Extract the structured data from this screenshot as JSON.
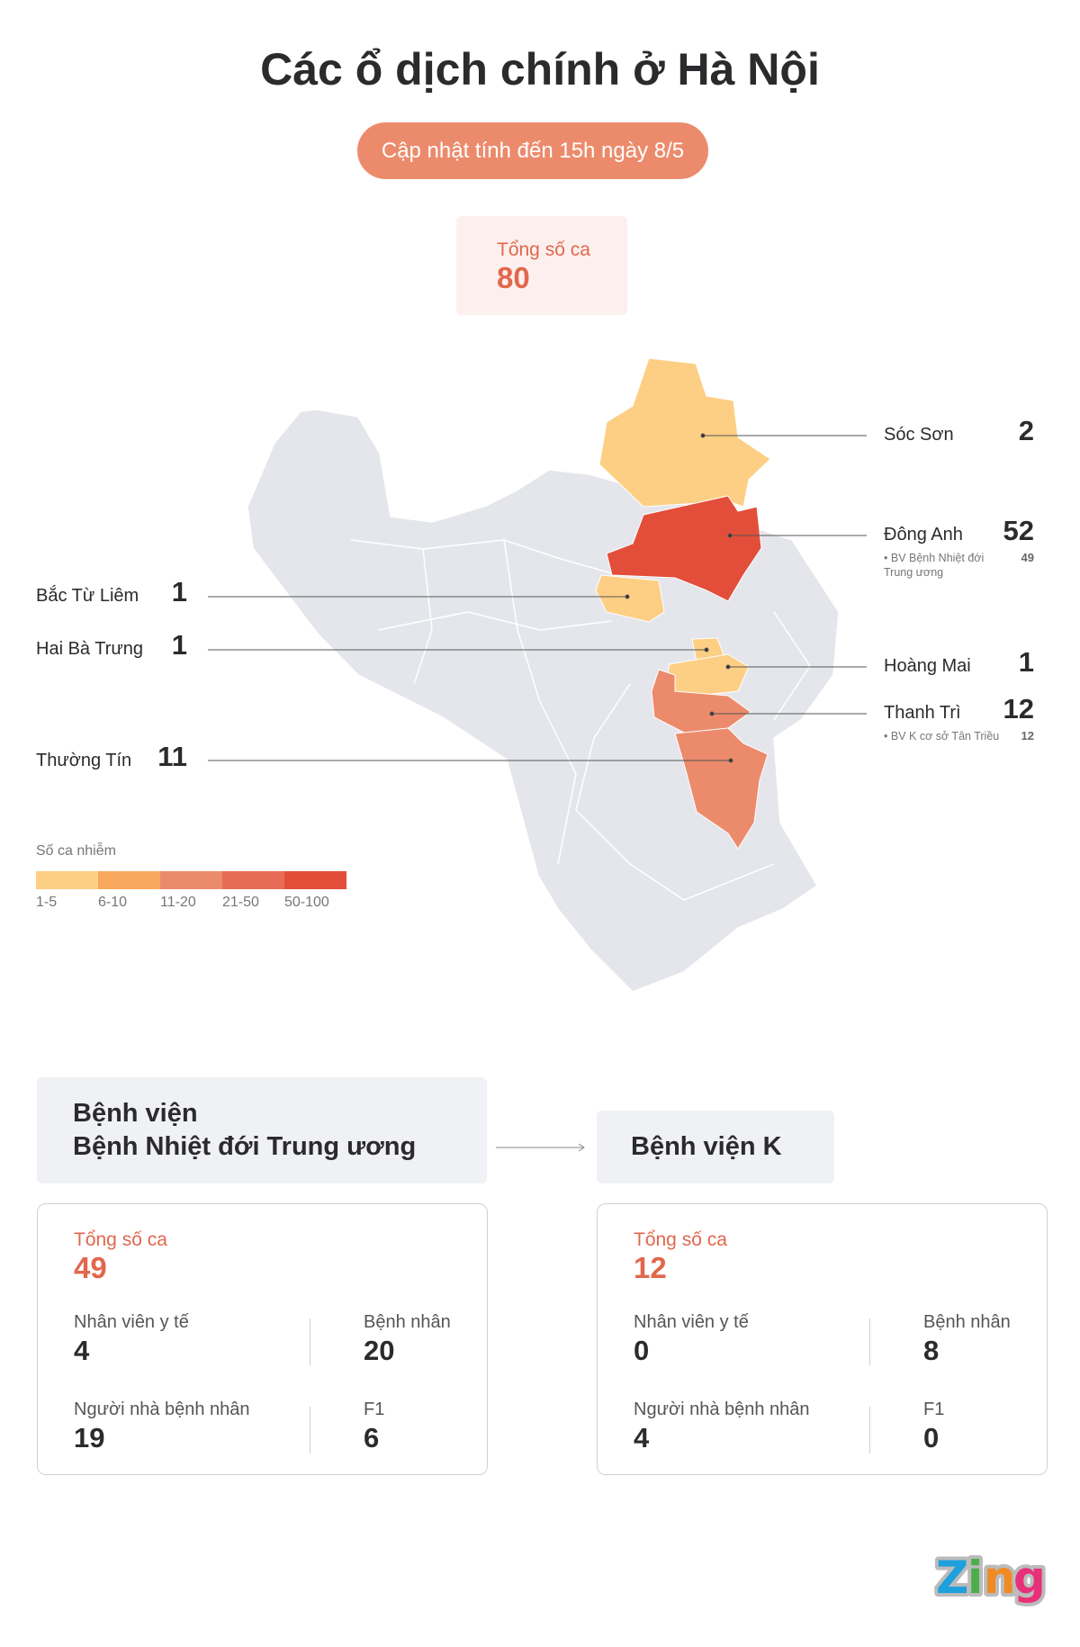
{
  "title": "Các ổ dịch chính ở Hà Nội",
  "update_badge": "Cập nhật tính đến 15h ngày 8/5",
  "total": {
    "label": "Tổng số ca",
    "value": "80"
  },
  "map": {
    "districts": [
      {
        "name": "Sóc Sơn",
        "cases": "2",
        "color": "#fdcf84"
      },
      {
        "name": "Đông Anh",
        "cases": "52",
        "color": "#e24e39",
        "note": "BV Bệnh Nhiệt đới Trung ương",
        "note_cases": "49"
      },
      {
        "name": "Bắc Từ Liêm",
        "cases": "1",
        "color": "#fdcf84"
      },
      {
        "name": "Hai Bà Trưng",
        "cases": "1",
        "color": "#fdcf84"
      },
      {
        "name": "Hoàng Mai",
        "cases": "1",
        "color": "#fdcf84"
      },
      {
        "name": "Thanh Trì",
        "cases": "12",
        "color": "#ec8b6c",
        "note": "BV K cơ sở Tân Triều",
        "note_cases": "12"
      },
      {
        "name": "Thường Tín",
        "cases": "11",
        "color": "#ec8b6c"
      }
    ],
    "base_color": "#e4e6ec"
  },
  "legend": {
    "title": "Số ca nhiễm",
    "items": [
      {
        "label": "1-5",
        "color": "#fdcf84"
      },
      {
        "label": "6-10",
        "color": "#f8a85c"
      },
      {
        "label": "11-20",
        "color": "#ec8b6c"
      },
      {
        "label": "21-50",
        "color": "#e76c55"
      },
      {
        "label": "50-100",
        "color": "#e24e39"
      }
    ]
  },
  "hospitals": [
    {
      "name_line1": "Bệnh viện",
      "name_line2": "Bệnh Nhiệt đới Trung ương",
      "total_label": "Tổng số ca",
      "total": "49",
      "stats": [
        {
          "label": "Nhân viên y tế",
          "value": "4"
        },
        {
          "label": "Bệnh nhân",
          "value": "20"
        },
        {
          "label": "Người nhà bệnh nhân",
          "value": "19"
        },
        {
          "label": "F1",
          "value": "6"
        }
      ]
    },
    {
      "name_line1": "Bệnh viện K",
      "total_label": "Tổng số ca",
      "total": "12",
      "stats": [
        {
          "label": "Nhân viên y tế",
          "value": "0"
        },
        {
          "label": "Bệnh nhân",
          "value": "8"
        },
        {
          "label": "Người nhà bệnh nhân",
          "value": "4"
        },
        {
          "label": "F1",
          "value": "0"
        }
      ]
    }
  ],
  "logo": "Zing"
}
